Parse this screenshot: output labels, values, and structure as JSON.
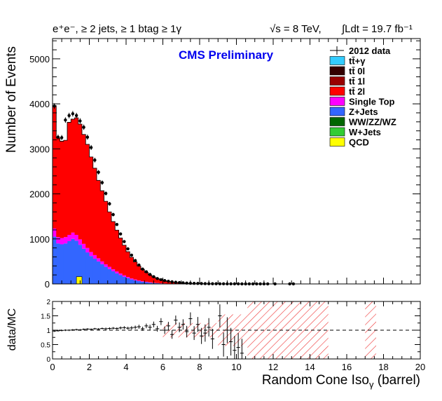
{
  "chart_data": {
    "type": "stacked_histogram",
    "header": {
      "selection": "e⁺e⁻, ≥ 2 jets, ≥ 1 btag ≥ 1γ",
      "energy": "√s = 8 TeV,",
      "lumi": "∫Ldt = 19.7 fb⁻¹"
    },
    "title": "CMS Preliminary",
    "xlabel": "Random Cone Iso",
    "xlabel_sub": "γ",
    "xlabel_suffix": " (barrel)",
    "ylabel": "Number of Events",
    "ratio_ylabel": "data/MC",
    "xlim": [
      0,
      20
    ],
    "ylim": [
      0,
      5450
    ],
    "ratio_ylim": [
      0,
      2
    ],
    "x_ticks": [
      0,
      2,
      4,
      6,
      8,
      10,
      12,
      14,
      16,
      18,
      20
    ],
    "y_ticks": [
      0,
      1000,
      2000,
      3000,
      4000,
      5000
    ],
    "ratio_y_ticks": [
      0,
      0.5,
      1,
      1.5,
      2
    ],
    "x_tick_labels": [
      "0",
      "2",
      "4",
      "6",
      "8",
      "10",
      "12",
      "14",
      "16",
      "18",
      "20"
    ],
    "y_tick_labels": [
      "0",
      "1000",
      "2000",
      "3000",
      "4000",
      "5000"
    ],
    "ratio_y_tick_labels": [
      "0",
      "0.5",
      "1",
      "1.5",
      "2"
    ],
    "bin_width": 0.2,
    "legend_position": "top-right",
    "legend": [
      {
        "label": "2012 data",
        "kind": "data",
        "color": "#000000"
      },
      {
        "label": "tt̄+γ",
        "kind": "fill",
        "color": "#33ccff"
      },
      {
        "label": "tt̄ 0l",
        "kind": "fill",
        "color": "#330000"
      },
      {
        "label": "tt̄ 1l",
        "kind": "fill",
        "color": "#990000"
      },
      {
        "label": "tt̄ 2l",
        "kind": "fill",
        "color": "#ff0000"
      },
      {
        "label": "Single Top",
        "kind": "fill",
        "color": "#ff00ff"
      },
      {
        "label": "Z+Jets",
        "kind": "fill",
        "color": "#3366ff"
      },
      {
        "label": "WW/ZZ/WZ",
        "kind": "fill",
        "color": "#006600"
      },
      {
        "label": "W+Jets",
        "kind": "fill",
        "color": "#33cc33"
      },
      {
        "label": "QCD",
        "kind": "fill",
        "color": "#ffff00"
      }
    ],
    "series": [
      {
        "name": "Z+Jets",
        "color": "#3366ff",
        "values": [
          1050,
          900,
          880,
          900,
          950,
          1000,
          960,
          870,
          780,
          700,
          620,
          560,
          500,
          440,
          380,
          330,
          280,
          235,
          195,
          160,
          130,
          100,
          80,
          62,
          48,
          38,
          28,
          20,
          15,
          10,
          8,
          6,
          4,
          3,
          2,
          1,
          1,
          0,
          0,
          0,
          0,
          0,
          0,
          0,
          0,
          0,
          0,
          0,
          0,
          0,
          0,
          0,
          0,
          0,
          0,
          0,
          0,
          0,
          0,
          0,
          0,
          0,
          0,
          0,
          0,
          0,
          0,
          0,
          0,
          0,
          0,
          0,
          0,
          0,
          0,
          0,
          0,
          0,
          0,
          0,
          0,
          0,
          0,
          0,
          0,
          0,
          0,
          0,
          0,
          0,
          0,
          0,
          0,
          0,
          0,
          0,
          0,
          0,
          0,
          0
        ]
      },
      {
        "name": "Single Top",
        "color": "#ff00ff",
        "values": [
          180,
          140,
          140,
          140,
          140,
          140,
          130,
          120,
          110,
          100,
          90,
          80,
          70,
          60,
          55,
          50,
          45,
          40,
          35,
          30,
          25,
          22,
          18,
          15,
          12,
          10,
          8,
          6,
          5,
          4,
          3,
          2,
          2,
          1,
          1,
          1,
          0,
          0,
          0,
          0,
          0,
          0,
          0,
          0,
          0,
          0,
          0,
          0,
          0,
          0,
          0,
          0,
          0,
          0,
          0,
          0,
          0,
          0,
          0,
          0,
          0,
          0,
          0,
          0,
          0,
          0,
          0,
          0,
          0,
          0,
          0,
          0,
          0,
          0,
          0,
          0,
          0,
          0,
          0,
          0,
          0,
          0,
          0,
          0,
          0,
          0,
          0,
          0,
          0,
          0,
          0,
          0,
          0,
          0,
          0,
          0,
          0,
          0,
          0,
          0
        ]
      },
      {
        "name": "tt̄ 2l",
        "color": "#ff0000",
        "values": [
          2730,
          2200,
          2150,
          2150,
          2500,
          2520,
          2600,
          2560,
          2430,
          2300,
          2110,
          1930,
          1730,
          1570,
          1400,
          1220,
          1060,
          920,
          790,
          670,
          560,
          470,
          390,
          320,
          260,
          210,
          165,
          128,
          100,
          78,
          60,
          47,
          36,
          28,
          22,
          17,
          13,
          10,
          8,
          6,
          5,
          4,
          3,
          2,
          2,
          1,
          1,
          1,
          1,
          0,
          0,
          0,
          0,
          0,
          0,
          0,
          0,
          0,
          0,
          0,
          0,
          0,
          0,
          0,
          0,
          0,
          0,
          0,
          0,
          0,
          0,
          0,
          0,
          0,
          0,
          0,
          0,
          0,
          0,
          0,
          0,
          0,
          0,
          0,
          0,
          0,
          0,
          0,
          0,
          0,
          0,
          0,
          0,
          0,
          0,
          0,
          0,
          0,
          0,
          0
        ]
      }
    ],
    "data_points": {
      "name": "2012 data",
      "x": [
        0.1,
        0.3,
        0.5,
        0.7,
        0.9,
        1.1,
        1.3,
        1.5,
        1.7,
        1.9,
        2.1,
        2.3,
        2.5,
        2.7,
        2.9,
        3.1,
        3.3,
        3.5,
        3.7,
        3.9,
        4.1,
        4.3,
        4.5,
        4.7,
        4.9,
        5.1,
        5.3,
        5.5,
        5.7,
        5.9,
        6.1,
        6.3,
        6.5,
        6.7,
        6.9,
        7.1,
        7.3,
        7.5,
        7.7,
        7.9,
        8.1,
        8.3,
        8.5,
        8.7,
        8.9,
        9.1,
        9.3,
        9.5,
        9.7,
        9.9,
        10.1,
        10.3,
        10.5,
        10.7,
        10.9,
        11.1,
        11.3,
        11.5,
        11.7,
        12.1,
        12.9,
        13.1
      ],
      "y": [
        3950,
        3260,
        3250,
        3640,
        3740,
        3780,
        3740,
        3620,
        3480,
        3260,
        3030,
        2750,
        2480,
        2250,
        2010,
        1780,
        1540,
        1320,
        1110,
        940,
        780,
        640,
        520,
        420,
        330,
        270,
        210,
        160,
        120,
        95,
        75,
        60,
        47,
        37,
        30,
        24,
        19,
        15,
        12,
        10,
        8,
        6,
        5,
        4,
        4,
        3,
        3,
        2,
        2,
        2,
        2,
        1,
        1,
        1,
        1,
        1,
        1,
        1,
        1,
        1,
        1,
        1
      ]
    },
    "ratio_points": {
      "x": [
        0.1,
        0.3,
        0.5,
        0.7,
        0.9,
        1.1,
        1.3,
        1.5,
        1.7,
        1.9,
        2.1,
        2.3,
        2.5,
        2.7,
        2.9,
        3.1,
        3.3,
        3.5,
        3.7,
        3.9,
        4.1,
        4.3,
        4.5,
        4.7,
        4.9,
        5.1,
        5.3,
        5.5,
        5.7,
        5.9,
        6.1,
        6.3,
        6.5,
        6.7,
        6.9,
        7.1,
        7.3,
        7.5,
        7.7,
        7.9,
        8.1,
        8.3,
        8.5,
        8.7,
        9.1,
        9.3,
        9.5,
        9.7,
        9.9,
        10.1,
        10.3
      ],
      "y": [
        0.97,
        0.98,
        0.99,
        1.0,
        1.0,
        1.01,
        1.02,
        1.01,
        1.03,
        1.04,
        1.03,
        1.05,
        1.04,
        1.06,
        1.05,
        1.06,
        1.07,
        1.06,
        1.08,
        1.09,
        1.07,
        1.08,
        1.1,
        1.12,
        1.05,
        1.15,
        1.1,
        1.2,
        1.05,
        1.3,
        1.0,
        1.15,
        0.85,
        1.35,
        1.1,
        1.2,
        0.95,
        1.4,
        0.9,
        1.2,
        0.8,
        0.9,
        1.1,
        0.7,
        1.5,
        0.5,
        1.0,
        0.6,
        0.3,
        0.4,
        0.2
      ],
      "err": [
        0.03,
        0.03,
        0.03,
        0.03,
        0.03,
        0.03,
        0.03,
        0.03,
        0.03,
        0.03,
        0.03,
        0.03,
        0.03,
        0.03,
        0.04,
        0.04,
        0.04,
        0.04,
        0.05,
        0.05,
        0.05,
        0.06,
        0.06,
        0.07,
        0.07,
        0.08,
        0.09,
        0.1,
        0.1,
        0.12,
        0.13,
        0.14,
        0.15,
        0.16,
        0.17,
        0.18,
        0.2,
        0.22,
        0.24,
        0.26,
        0.28,
        0.3,
        0.32,
        0.35,
        0.4,
        0.42,
        0.45,
        0.48,
        0.5,
        0.5,
        0.5
      ]
    },
    "uncertainty_band": [
      {
        "x0": 6.0,
        "x1": 9.0,
        "half": 0.25
      },
      {
        "x0": 9.0,
        "x1": 10.6,
        "half": 0.55
      },
      {
        "x0": 10.6,
        "x1": 12.6,
        "half": 1.0
      },
      {
        "x0": 12.6,
        "x1": 15.0,
        "half": 1.0
      },
      {
        "x0": 17.0,
        "x1": 17.6,
        "half": 1.0
      }
    ]
  }
}
